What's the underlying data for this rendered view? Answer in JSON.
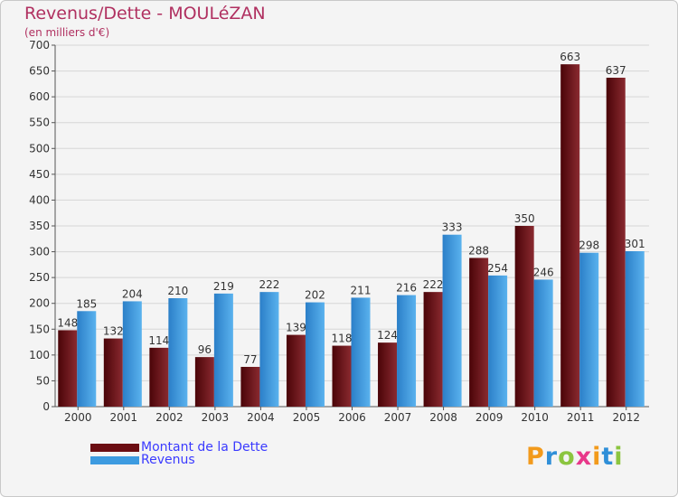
{
  "chart_data": {
    "type": "bar",
    "title": "Revenus/Dette - MOULéZAN",
    "subtitle": "(en milliers d'€)",
    "categories": [
      "2000",
      "2001",
      "2002",
      "2003",
      "2004",
      "2005",
      "2006",
      "2007",
      "2008",
      "2009",
      "2010",
      "2011",
      "2012"
    ],
    "series": [
      {
        "name": "Montant de la Dette",
        "color": "#6b0d12",
        "values": [
          148,
          132,
          114,
          96,
          77,
          139,
          118,
          124,
          222,
          288,
          350,
          663,
          637
        ]
      },
      {
        "name": "Revenus",
        "color": "#3d9be0",
        "values": [
          185,
          204,
          210,
          219,
          222,
          202,
          211,
          216,
          333,
          254,
          246,
          298,
          301
        ]
      }
    ],
    "ylim": [
      0,
      700
    ],
    "yticks": [
      0,
      50,
      100,
      150,
      200,
      250,
      300,
      350,
      400,
      450,
      500,
      550,
      600,
      650,
      700
    ],
    "grid": true,
    "legend": "bottom-left"
  },
  "logo": {
    "text": "Proxiti",
    "letters": [
      "P",
      "r",
      "o",
      "x",
      "i",
      "t",
      "i"
    ],
    "colors": [
      "#f29a1c",
      "#2f8fd8",
      "#8bc53f",
      "#e8388a",
      "#f29a1c",
      "#2f8fd8",
      "#8bc53f"
    ]
  }
}
